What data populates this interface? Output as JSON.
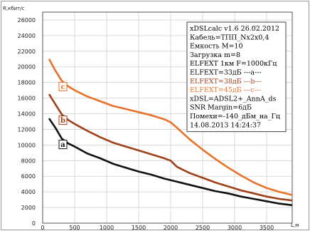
{
  "chart_data": {
    "type": "line",
    "title": "",
    "xlabel": "L,м",
    "ylabel": "R,кбит/с",
    "xlim": [
      0,
      3900
    ],
    "ylim": [
      0,
      27000
    ],
    "xticks": [
      0,
      500,
      1000,
      1500,
      2000,
      2500,
      3000,
      3500
    ],
    "yticks": [
      0,
      2000,
      4000,
      6000,
      8000,
      10000,
      12000,
      14000,
      16000,
      18000,
      20000,
      22000,
      24000,
      26000
    ],
    "grid": true,
    "series": [
      {
        "name": "a",
        "color": "#111111",
        "points": [
          [
            100,
            13400
          ],
          [
            200,
            12200
          ],
          [
            300,
            10800
          ],
          [
            400,
            10200
          ],
          [
            500,
            9800
          ],
          [
            700,
            8900
          ],
          [
            900,
            8300
          ],
          [
            1100,
            7600
          ],
          [
            1300,
            7100
          ],
          [
            1500,
            6600
          ],
          [
            1700,
            6200
          ],
          [
            1900,
            5700
          ],
          [
            2100,
            5300
          ],
          [
            2300,
            4900
          ],
          [
            2500,
            4500
          ],
          [
            2700,
            4100
          ],
          [
            2900,
            3800
          ],
          [
            3100,
            3400
          ],
          [
            3300,
            3100
          ],
          [
            3500,
            2800
          ],
          [
            3700,
            2500
          ],
          [
            3900,
            2300
          ]
        ]
      },
      {
        "name": "b",
        "color": "#a0401a",
        "points": [
          [
            100,
            16500
          ],
          [
            200,
            15200
          ],
          [
            300,
            13900
          ],
          [
            400,
            13200
          ],
          [
            500,
            12700
          ],
          [
            700,
            11800
          ],
          [
            900,
            11000
          ],
          [
            1100,
            10300
          ],
          [
            1300,
            9800
          ],
          [
            1500,
            9300
          ],
          [
            1700,
            8800
          ],
          [
            1900,
            8300
          ],
          [
            2000,
            8000
          ],
          [
            2100,
            7200
          ],
          [
            2300,
            6400
          ],
          [
            2500,
            5800
          ],
          [
            2700,
            5200
          ],
          [
            2900,
            4700
          ],
          [
            3100,
            4200
          ],
          [
            3300,
            3800
          ],
          [
            3500,
            3400
          ],
          [
            3700,
            3100
          ],
          [
            3900,
            2900
          ]
        ]
      },
      {
        "name": "c",
        "color": "#e8722a",
        "points": [
          [
            100,
            21000
          ],
          [
            200,
            19500
          ],
          [
            300,
            18200
          ],
          [
            400,
            17500
          ],
          [
            500,
            17000
          ],
          [
            700,
            16200
          ],
          [
            900,
            15600
          ],
          [
            1100,
            15000
          ],
          [
            1300,
            14600
          ],
          [
            1500,
            14200
          ],
          [
            1700,
            13800
          ],
          [
            1900,
            13300
          ],
          [
            2000,
            12900
          ],
          [
            2100,
            12200
          ],
          [
            2300,
            10700
          ],
          [
            2500,
            9400
          ],
          [
            2700,
            8200
          ],
          [
            2900,
            7100
          ],
          [
            3100,
            6100
          ],
          [
            3300,
            5200
          ],
          [
            3500,
            4500
          ],
          [
            3700,
            4000
          ],
          [
            3900,
            3600
          ]
        ]
      }
    ],
    "annotations": [
      "a",
      "b",
      "c"
    ],
    "legend": {
      "placement": "top-right",
      "lines": [
        {
          "text": "xDSLcalc v1.6 26.02.2012",
          "color": "#000000"
        },
        {
          "text": "Кабель=ТПП_Nx2x0,4",
          "color": "#000000"
        },
        {
          "text": "Емкость M=10",
          "color": "#000000"
        },
        {
          "text": "Загрузка m=8",
          "color": "#000000"
        },
        {
          "text": "ELFEXT 1км F=1000кГц",
          "color": "#000000"
        },
        {
          "text": "ELFEXT=33дБ ---a---",
          "color": "#000000"
        },
        {
          "text": "ELFEXT=38дБ ---b---",
          "color": "#a0401a"
        },
        {
          "text": "ELFEXT=45дБ ---c---",
          "color": "#e8722a"
        },
        {
          "text": "xDSL=ADSL2+_AnnA_ds",
          "color": "#000000"
        },
        {
          "text": "SNR Margin=6дБ",
          "color": "#000000"
        },
        {
          "text": "Помехи=-140_дБм_на_Гц",
          "color": "#000000"
        },
        {
          "text": "14.08.2013 14:24:37",
          "color": "#000000"
        }
      ]
    }
  }
}
